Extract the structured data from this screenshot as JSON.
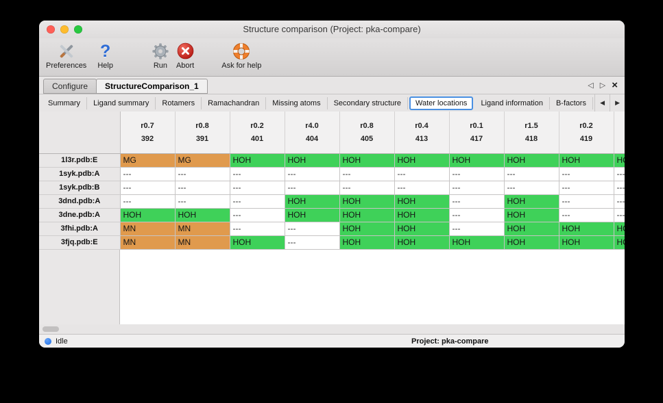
{
  "window": {
    "title": "Structure comparison (Project: pka-compare)"
  },
  "colors": {
    "water_cell": "#3fd159",
    "metal_cell": "#e09a4d",
    "selected_tab_border": "#4a90e2",
    "traffic_close": "#ff5f57",
    "traffic_minimize": "#febc2e",
    "traffic_zoom": "#28c840",
    "status_dot": "#1c6ee8"
  },
  "toolbar": {
    "items": [
      {
        "label": "Preferences",
        "icon": "tools-icon"
      },
      {
        "label": "Help",
        "icon": "question-icon"
      },
      {
        "label": "Run",
        "icon": "gear-icon"
      },
      {
        "label": "Abort",
        "icon": "abort-icon"
      },
      {
        "label": "Ask for help",
        "icon": "lifebuoy-icon"
      }
    ]
  },
  "tabs": {
    "document_tabs": [
      {
        "label": "Configure"
      },
      {
        "label": "StructureComparison_1"
      }
    ],
    "nav_prev": "◁",
    "nav_next": "▷",
    "nav_close": "×"
  },
  "subtabs": {
    "items": [
      "Summary",
      "Ligand summary",
      "Rotamers",
      "Ramachandran",
      "Missing atoms",
      "Secondary structure",
      "Water locations",
      "Ligand information",
      "B-factors"
    ],
    "selected": "Water locations",
    "scroll_left": "◀",
    "scroll_right": "▶"
  },
  "table": {
    "columns": [
      {
        "r": "r0.7",
        "num": "392"
      },
      {
        "r": "r0.8",
        "num": "391"
      },
      {
        "r": "r0.2",
        "num": "401"
      },
      {
        "r": "r4.0",
        "num": "404"
      },
      {
        "r": "r0.8",
        "num": "405"
      },
      {
        "r": "r0.4",
        "num": "413"
      },
      {
        "r": "r0.1",
        "num": "417"
      },
      {
        "r": "r1.5",
        "num": "418"
      },
      {
        "r": "r0.2",
        "num": "419"
      },
      {
        "r": "",
        "num": ""
      }
    ],
    "rows": [
      {
        "name": "1l3r.pdb:E",
        "cells": [
          "MG",
          "MG",
          "HOH",
          "HOH",
          "HOH",
          "HOH",
          "HOH",
          "HOH",
          "HOH",
          "HOH"
        ]
      },
      {
        "name": "1syk.pdb:A",
        "cells": [
          "---",
          "---",
          "---",
          "---",
          "---",
          "---",
          "---",
          "---",
          "---",
          "---"
        ]
      },
      {
        "name": "1syk.pdb:B",
        "cells": [
          "---",
          "---",
          "---",
          "---",
          "---",
          "---",
          "---",
          "---",
          "---",
          "---"
        ]
      },
      {
        "name": "3dnd.pdb:A",
        "cells": [
          "---",
          "---",
          "---",
          "HOH",
          "HOH",
          "HOH",
          "---",
          "HOH",
          "---",
          "---"
        ]
      },
      {
        "name": "3dne.pdb:A",
        "cells": [
          "HOH",
          "HOH",
          "---",
          "HOH",
          "HOH",
          "HOH",
          "---",
          "HOH",
          "---",
          "---"
        ]
      },
      {
        "name": "3fhi.pdb:A",
        "cells": [
          "MN",
          "MN",
          "---",
          "---",
          "HOH",
          "HOH",
          "---",
          "HOH",
          "HOH",
          "HOH"
        ]
      },
      {
        "name": "3fjq.pdb:E",
        "cells": [
          "MN",
          "MN",
          "HOH",
          "---",
          "HOH",
          "HOH",
          "HOH",
          "HOH",
          "HOH",
          "HOH"
        ]
      }
    ]
  },
  "statusbar": {
    "status": "Idle",
    "project": "Project: pka-compare"
  }
}
